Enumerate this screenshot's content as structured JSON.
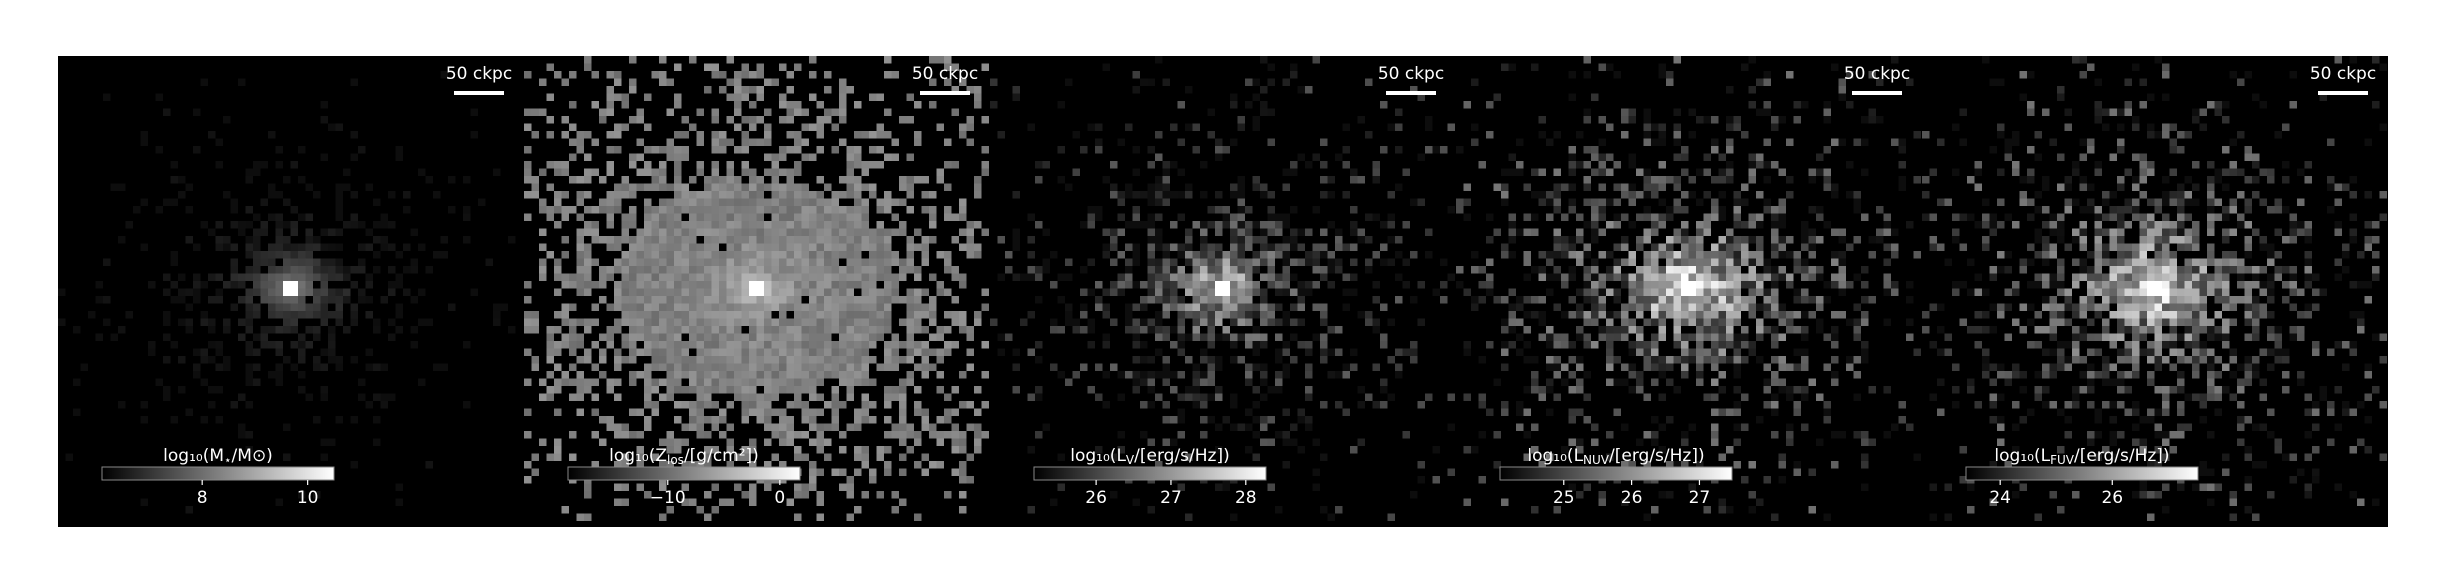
{
  "panels": [
    {
      "scalebar": "50 ckpc",
      "colorbar": {
        "label": {
          "pre": "log₁₀(M",
          "sub": "⋆",
          "post": "/M⊙)"
        },
        "lim": [
          6.1,
          10.5
        ],
        "ticks": [
          8,
          10
        ]
      }
    },
    {
      "scalebar": "50 ckpc",
      "colorbar": {
        "label": {
          "pre": "log₁₀(Z",
          "sub": "los",
          "post": "/[g/cm²])"
        },
        "lim": [
          -18.9,
          1.8
        ],
        "ticks": [
          {
            "value": -10,
            "label": "−10"
          },
          0
        ]
      }
    },
    {
      "scalebar": "50 ckpc",
      "colorbar": {
        "label": {
          "pre": "log₁₀(L",
          "sub": "V",
          "post": "/[erg/s/Hz])"
        },
        "lim": [
          25.17,
          28.27
        ],
        "ticks": [
          26,
          27,
          28
        ]
      }
    },
    {
      "scalebar": "50 ckpc",
      "colorbar": {
        "label": {
          "pre": "log₁₀(L",
          "sub": "NUV",
          "post": "/[erg/s/Hz])"
        },
        "lim": [
          24.06,
          27.48
        ],
        "ticks": [
          25,
          26,
          27
        ]
      }
    },
    {
      "scalebar": "50 ckpc",
      "colorbar": {
        "label": {
          "pre": "log₁₀(L",
          "sub": "FUV",
          "post": "/[erg/s/Hz])"
        },
        "lim": [
          23.39,
          27.53
        ],
        "ticks": [
          24,
          26
        ]
      }
    }
  ]
}
